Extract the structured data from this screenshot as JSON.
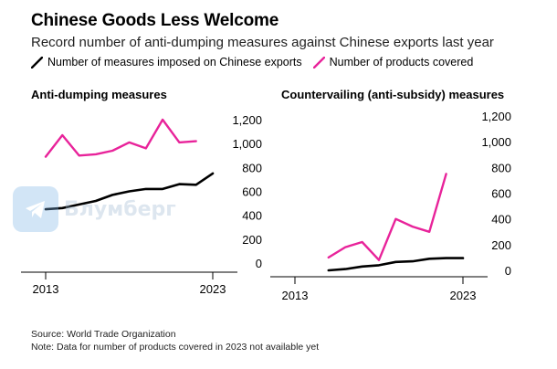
{
  "header": {
    "title": "Chinese Goods Less Welcome",
    "subtitle": "Record number of anti-dumping measures against Chinese exports last year"
  },
  "legend": [
    {
      "label": "Number of measures imposed on Chinese exports",
      "color": "#000000"
    },
    {
      "label": "Number of products covered",
      "color": "#e8239a"
    }
  ],
  "chart_data": [
    {
      "type": "line",
      "title": "Anti-dumping measures",
      "x": [
        2013,
        2014,
        2015,
        2016,
        2017,
        2018,
        2019,
        2020,
        2021,
        2022,
        2023
      ],
      "xticks": [
        "2013",
        "2023"
      ],
      "yticks": [
        "1,200",
        "1,000",
        "800",
        "600",
        "400",
        "200",
        "0"
      ],
      "ylim": [
        0,
        1200
      ],
      "series": [
        {
          "name": "Number of measures imposed on Chinese exports",
          "color": "#000000",
          "values": [
            450,
            460,
            490,
            520,
            570,
            600,
            620,
            620,
            660,
            655,
            750
          ]
        },
        {
          "name": "Number of products covered",
          "color": "#e8239a",
          "values": [
            890,
            1070,
            900,
            910,
            940,
            1010,
            960,
            1200,
            1010,
            1020,
            null
          ]
        }
      ]
    },
    {
      "type": "line",
      "title": "Countervailing (anti-subsidy) measures",
      "x": [
        2013,
        2014,
        2015,
        2016,
        2017,
        2018,
        2019,
        2020,
        2021,
        2022,
        2023
      ],
      "xticks": [
        "2013",
        "2023"
      ],
      "yticks": [
        "1,200",
        "1,000",
        "800",
        "600",
        "400",
        "200",
        "0"
      ],
      "ylim": [
        0,
        1200
      ],
      "series": [
        {
          "name": "Number of measures imposed on Chinese exports",
          "color": "#000000",
          "values": [
            null,
            null,
            0,
            10,
            30,
            40,
            65,
            70,
            90,
            95,
            95
          ]
        },
        {
          "name": "Number of products covered",
          "color": "#e8239a",
          "values": [
            null,
            null,
            100,
            180,
            220,
            80,
            400,
            340,
            300,
            750,
            null
          ]
        }
      ]
    }
  ],
  "watermark": {
    "text": "Блумберг"
  },
  "footer": {
    "source": "Source: World Trade Organization",
    "note": "Note: Data for number of products covered in 2023 not available yet"
  }
}
